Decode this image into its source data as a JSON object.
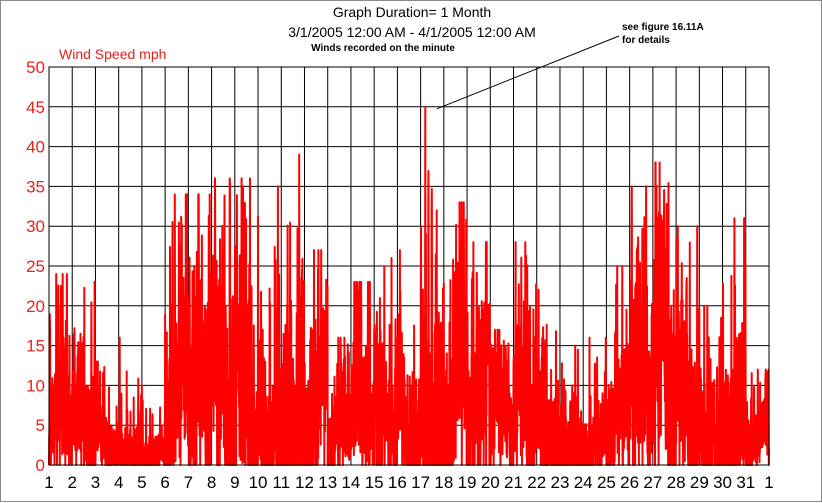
{
  "colors": {
    "series": "#ff0000",
    "ytick": "#e8221b",
    "grid": "#000000",
    "background": "#ffffff"
  },
  "chart_data": {
    "type": "line",
    "title": "Graph Duration= 1 Month",
    "date_range": "3/1/2005 12:00 AM - 4/1/2005 12:00 AM",
    "subtitle": "Winds recorded on the minute",
    "ylabel": "Wind Speed mph",
    "ylim": [
      0,
      50
    ],
    "yticks": [
      "0",
      "5",
      "10",
      "15",
      "20",
      "25",
      "30",
      "35",
      "40",
      "45",
      "50"
    ],
    "xticks": [
      "1",
      "2",
      "3",
      "4",
      "5",
      "6",
      "7",
      "8",
      "9",
      "10",
      "11",
      "12",
      "13",
      "14",
      "15",
      "16",
      "17",
      "18",
      "19",
      "20",
      "21",
      "22",
      "23",
      "24",
      "25",
      "26",
      "27",
      "28",
      "29",
      "30",
      "31",
      "1"
    ],
    "grid": true,
    "annotation": {
      "line1": "see figure 16.11A",
      "line2": "for details",
      "points_to_x": 17.7,
      "points_to_y": 46
    },
    "series": [
      {
        "daily_max": [
          24,
          23,
          13,
          16,
          10,
          34,
          34,
          36,
          36,
          35,
          39,
          27,
          16,
          23,
          26,
          27,
          45,
          33,
          28,
          17,
          28,
          22,
          15,
          16,
          25,
          35,
          38,
          30,
          20,
          31,
          12
        ],
        "daily_mean": [
          7,
          8,
          5,
          5,
          3,
          12,
          13,
          14,
          12,
          12,
          18,
          11,
          5,
          8,
          10,
          12,
          18,
          14,
          12,
          7,
          9,
          8,
          6,
          6,
          9,
          14,
          18,
          14,
          9,
          13,
          5
        ]
      }
    ]
  }
}
